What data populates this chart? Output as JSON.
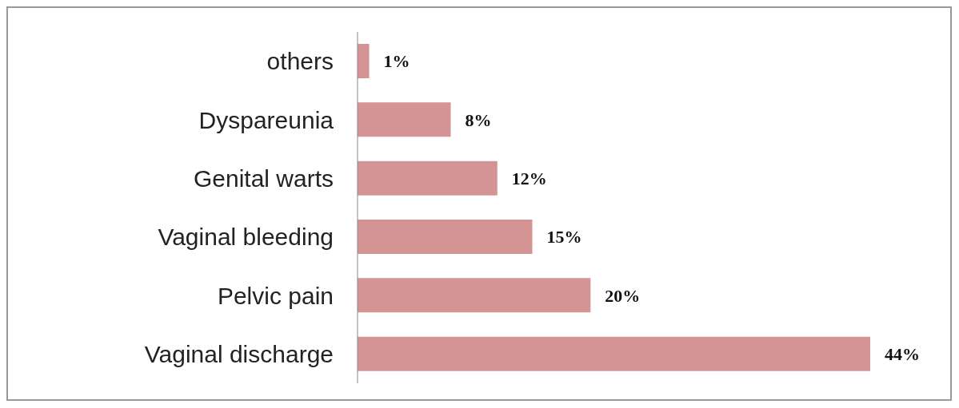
{
  "chart_data": {
    "type": "bar",
    "orientation": "horizontal",
    "categories": [
      "others",
      "Dyspareunia",
      "Genital warts",
      "Vaginal bleeding",
      "Pelvic pain",
      "Vaginal discharge"
    ],
    "values": [
      1,
      8,
      12,
      15,
      20,
      44
    ],
    "color": "#d49494",
    "value_labels": [
      "1%",
      "8%",
      "12%",
      "15%",
      "20%",
      "44%"
    ],
    "grid": false,
    "legend": false
  }
}
